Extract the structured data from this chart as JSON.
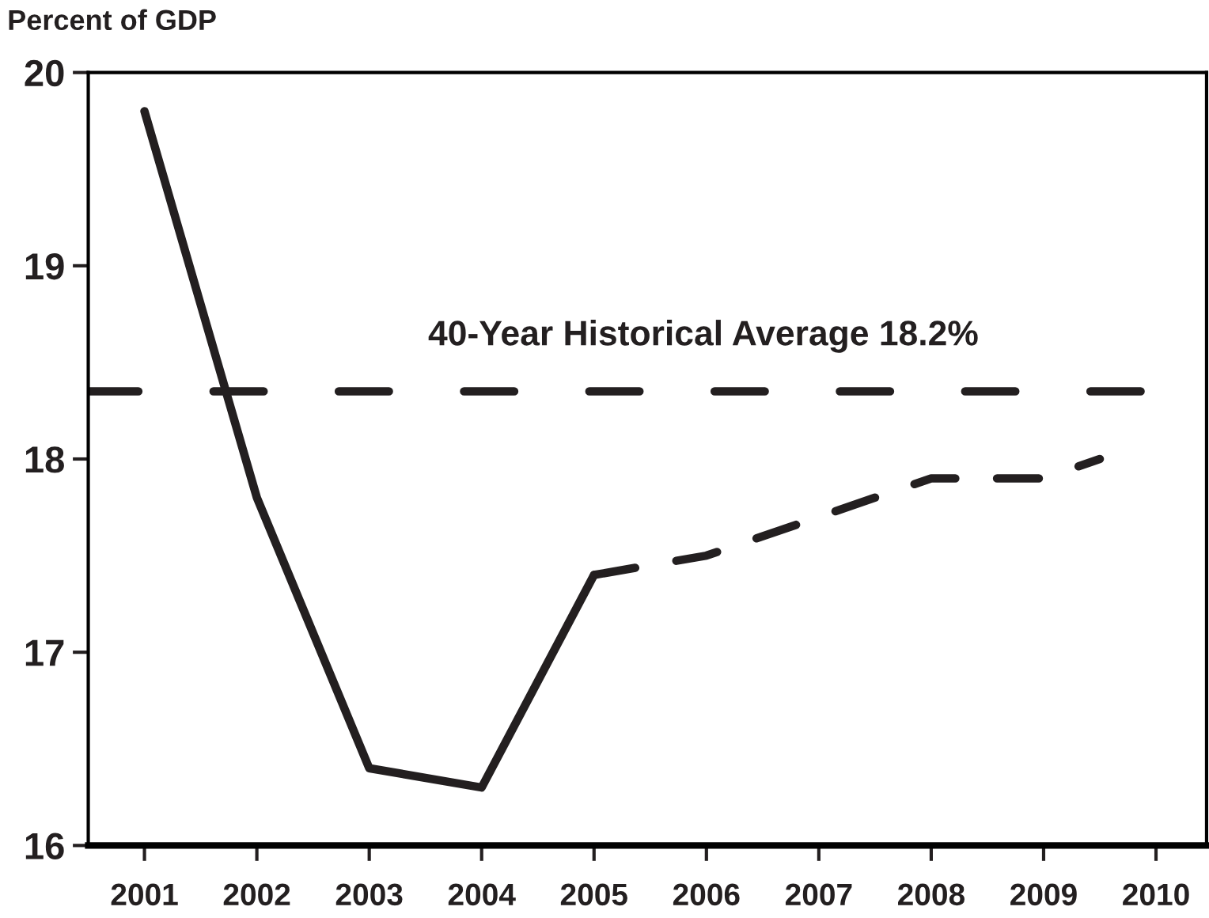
{
  "chart_data": {
    "type": "line",
    "ylabel": "Percent of GDP",
    "xlim": [
      2000.5,
      2010.45
    ],
    "xticks": [
      2001,
      2002,
      2003,
      2004,
      2005,
      2006,
      2007,
      2008,
      2009,
      2010
    ],
    "ylim": [
      16,
      20
    ],
    "yticks": [
      16,
      17,
      18,
      19,
      20
    ],
    "series": [
      {
        "color": "#231f20",
        "line_style": "solid",
        "x": [
          2001,
          2002,
          2003,
          2004,
          2005
        ],
        "values": [
          19.8,
          17.8,
          16.4,
          16.3,
          17.4
        ]
      },
      {
        "color": "#231f20",
        "line_style": "dashed",
        "x": [
          2005,
          2006,
          2007,
          2008,
          2009,
          2009.5
        ],
        "values": [
          17.4,
          17.5,
          17.7,
          17.9,
          17.9,
          18.0
        ]
      }
    ],
    "ref_lines": [
      {
        "axis": "y",
        "value": 18.35,
        "label": "40-Year Historical Average 18.2%",
        "color": "#231f20",
        "line_style": "dashed"
      }
    ],
    "grid": false,
    "legend": false,
    "marker": "none"
  }
}
